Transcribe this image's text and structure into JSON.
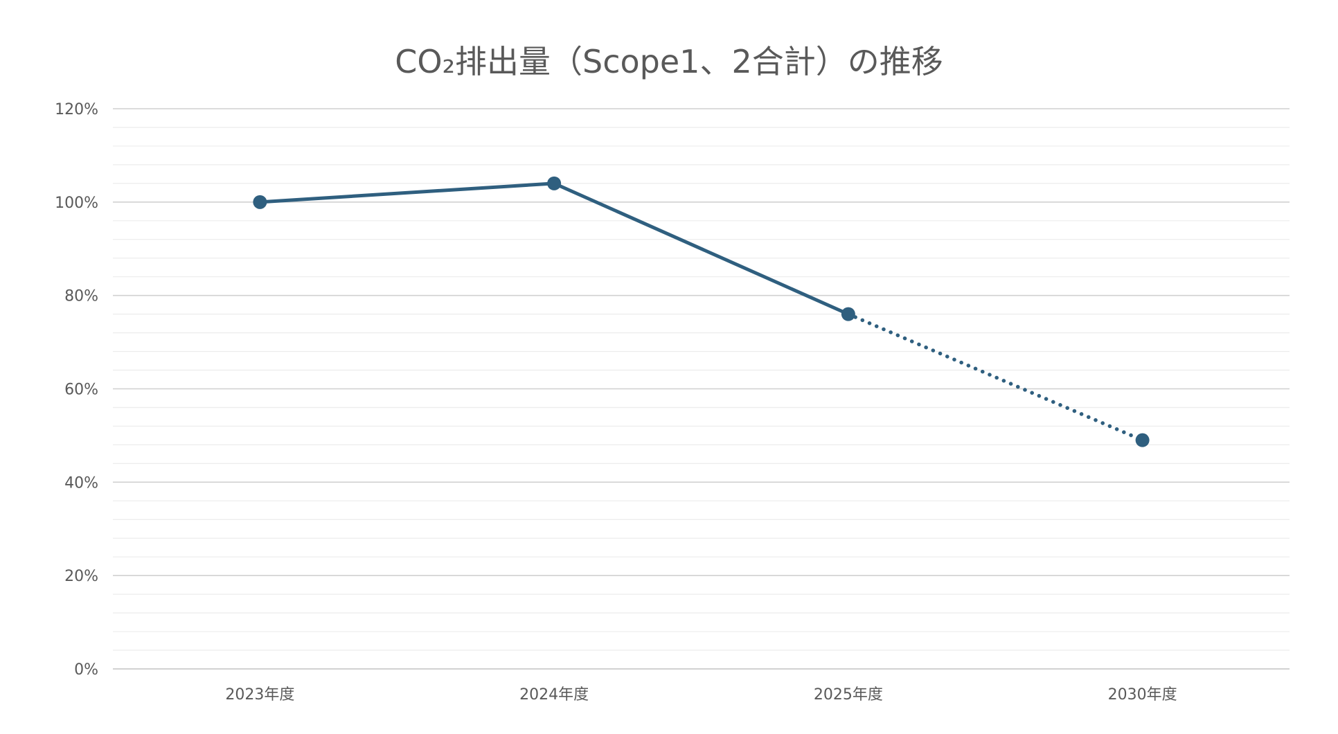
{
  "colors": {
    "series": "#2f5f7f",
    "text": "#595959",
    "grid_major": "#d0d0d0",
    "grid_minor": "#ececec"
  },
  "chart_data": {
    "type": "line",
    "title": "CO₂排出量（Scope1、2合計）の推移",
    "xlabel": "",
    "ylabel": "",
    "categories": [
      "2023年度",
      "2024年度",
      "2025年度",
      "2030年度"
    ],
    "series": [
      {
        "values": [
          100,
          104,
          76,
          49
        ],
        "unit": "%",
        "segment_styles": [
          "solid",
          "solid",
          "dotted"
        ],
        "markers": true
      }
    ],
    "ylim": [
      0,
      120
    ],
    "yticks": [
      0,
      20,
      40,
      60,
      80,
      100,
      120
    ],
    "ytick_labels": [
      "0%",
      "20%",
      "40%",
      "60%",
      "80%",
      "100%",
      "120%"
    ],
    "minor_gridlines_per_major": 5,
    "grid": true,
    "legend": "none"
  }
}
